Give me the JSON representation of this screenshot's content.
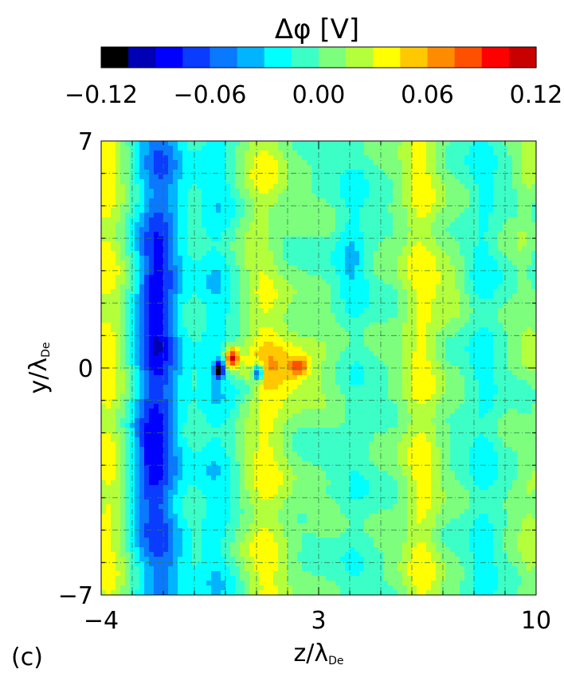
{
  "panel_label": "(c)",
  "chart_data": {
    "type": "heatmap",
    "colorbar": {
      "title": "Δφ [V]",
      "range": [
        -0.12,
        0.12
      ],
      "tick_labels": [
        "−0.12",
        "−0.06",
        "0.00",
        "0.06",
        "0.12"
      ],
      "tick_values": [
        -0.12,
        -0.06,
        0.0,
        0.06,
        0.12
      ],
      "colors": [
        "#000000",
        "#0000b4",
        "#0000ff",
        "#0a3cff",
        "#0a78ff",
        "#00b4ff",
        "#00ffff",
        "#3cffc8",
        "#7dff7d",
        "#b4ff3c",
        "#ffff00",
        "#ffc800",
        "#ff8c00",
        "#ff5000",
        "#ff0000",
        "#c80000"
      ]
    },
    "xlabel": "z/λ",
    "xlabel_sub": "De",
    "ylabel": "y/λ",
    "ylabel_sub": "De",
    "xlim": [
      -4,
      10
    ],
    "ylim": [
      -7,
      7
    ],
    "x_tick_labels": [
      "−4",
      "3",
      "10"
    ],
    "x_tick_values": [
      -4,
      3,
      10
    ],
    "y_tick_labels": [
      "−7",
      "0",
      "7"
    ],
    "y_tick_values": [
      -7,
      0,
      7
    ],
    "grid": true,
    "features": [
      {
        "kind": "band",
        "z": -3.8,
        "zw": 0.55,
        "amp": 0.035,
        "y0": 0,
        "yw": 40
      },
      {
        "kind": "band",
        "z": -2.1,
        "zw": 0.75,
        "amp": -0.055,
        "y0": 0,
        "yw": 40
      },
      {
        "kind": "band",
        "z": -0.3,
        "zw": 0.6,
        "amp": -0.025,
        "y0": 0,
        "yw": 40
      },
      {
        "kind": "band",
        "z": 1.3,
        "zw": 0.7,
        "amp": 0.035,
        "y0": 0,
        "yw": 40
      },
      {
        "kind": "band",
        "z": 4.2,
        "zw": 0.5,
        "amp": -0.012,
        "y0": 0,
        "yw": 40
      },
      {
        "kind": "band",
        "z": 6.3,
        "zw": 0.6,
        "amp": 0.035,
        "y0": 0,
        "yw": 40
      },
      {
        "kind": "band",
        "z": 8.3,
        "zw": 0.5,
        "amp": -0.02,
        "y0": 0,
        "yw": 40
      },
      {
        "kind": "band",
        "z": 9.8,
        "zw": 0.4,
        "amp": 0.02,
        "y0": 0,
        "yw": 40
      },
      {
        "kind": "blob",
        "z": -2.3,
        "y": 1.8,
        "zw": 0.55,
        "yw": 2.8,
        "amp": -0.035
      },
      {
        "kind": "blob",
        "z": -2.5,
        "y": -3.0,
        "zw": 0.55,
        "yw": 2.2,
        "amp": -0.035
      },
      {
        "kind": "blob",
        "z": 2.3,
        "y": 0.1,
        "zw": 1.2,
        "yw": 1.1,
        "amp": 0.035
      },
      {
        "kind": "blob",
        "z": 4.0,
        "y": 3.5,
        "zw": 0.5,
        "yw": 1.6,
        "amp": -0.022
      },
      {
        "kind": "blob",
        "z": 1.6,
        "y": 4.0,
        "zw": 0.5,
        "yw": 1.5,
        "amp": -0.02
      },
      {
        "kind": "blob",
        "z": 7.2,
        "y": 2.5,
        "zw": 0.5,
        "yw": 1.2,
        "amp": 0.02
      },
      {
        "kind": "blob",
        "z": 9.9,
        "y": 3.5,
        "zw": 0.3,
        "yw": 1.5,
        "amp": -0.025
      },
      {
        "kind": "blob",
        "z": 9.7,
        "y": -1.5,
        "zw": 0.3,
        "yw": 1.5,
        "amp": -0.02
      },
      {
        "kind": "blob",
        "z": 0.2,
        "y": 0.3,
        "zw": 0.22,
        "yw": 0.32,
        "amp": 0.11
      },
      {
        "kind": "blob",
        "z": 2.35,
        "y": 0.05,
        "zw": 0.32,
        "yw": 0.26,
        "amp": 0.05
      },
      {
        "kind": "blob",
        "z": -0.2,
        "y": -0.05,
        "zw": 0.16,
        "yw": 0.24,
        "amp": -0.12
      },
      {
        "kind": "blob",
        "z": 1.05,
        "y": -0.15,
        "zw": 0.16,
        "yw": 0.28,
        "amp": -0.11
      },
      {
        "kind": "blob",
        "z": 0.6,
        "y": -0.6,
        "zw": 0.25,
        "yw": 0.3,
        "amp": -0.02
      }
    ]
  }
}
